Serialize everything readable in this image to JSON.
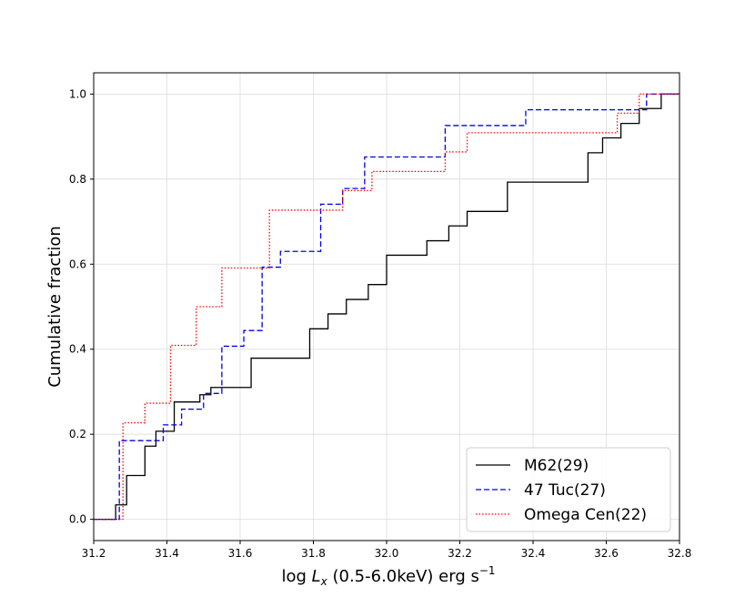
{
  "chart_data": {
    "type": "line",
    "subtype": "step-cdf",
    "title": "",
    "xlabel": {
      "prefix": "log ",
      "var": "L",
      "sub": "x",
      "suffix": " (0.5-6.0keV) erg s",
      "sup": "−1"
    },
    "ylabel": "Cumulative fraction",
    "xlim": [
      31.2,
      32.8
    ],
    "ylim": [
      -0.05,
      1.05
    ],
    "xticks": [
      "31.2",
      "31.4",
      "31.6",
      "31.8",
      "32.0",
      "32.2",
      "32.4",
      "32.6",
      "32.8"
    ],
    "yticks": [
      "0.0",
      "0.2",
      "0.4",
      "0.6",
      "0.8",
      "1.0"
    ],
    "grid": true,
    "legend_position": "bottom-right",
    "series": [
      {
        "name": "M62(29)",
        "color": "#000000",
        "dash": "solid",
        "x": [
          31.2,
          31.26,
          31.29,
          31.34,
          31.37,
          31.42,
          31.47,
          31.49,
          31.52,
          31.55,
          31.63,
          31.79,
          31.84,
          31.89,
          31.95,
          32.0,
          32.11,
          32.17,
          32.22,
          32.33,
          32.55,
          32.59,
          32.64,
          32.69,
          32.73,
          32.75,
          32.8
        ],
        "y": [
          0.0,
          0.034,
          0.103,
          0.172,
          0.207,
          0.276,
          0.276,
          0.293,
          0.31,
          0.31,
          0.379,
          0.448,
          0.483,
          0.517,
          0.552,
          0.621,
          0.655,
          0.69,
          0.724,
          0.793,
          0.862,
          0.897,
          0.931,
          0.966,
          0.966,
          1.0,
          1.0
        ]
      },
      {
        "name": "47 Tuc(27)",
        "color": "#0000ee",
        "dash": "dashed",
        "x": [
          31.2,
          31.27,
          31.39,
          31.44,
          31.5,
          31.55,
          31.61,
          31.66,
          31.71,
          31.82,
          31.88,
          31.94,
          32.16,
          32.38,
          32.71,
          32.8
        ],
        "y": [
          0.0,
          0.185,
          0.222,
          0.259,
          0.296,
          0.407,
          0.444,
          0.593,
          0.63,
          0.741,
          0.778,
          0.852,
          0.926,
          0.963,
          1.0,
          1.0
        ]
      },
      {
        "name": "Omega Cen(22)",
        "color": "#ff0000",
        "dash": "dotted",
        "x": [
          31.2,
          31.28,
          31.34,
          31.41,
          31.48,
          31.55,
          31.68,
          31.88,
          31.96,
          32.16,
          32.22,
          32.63,
          32.69,
          32.8
        ],
        "y": [
          0.0,
          0.227,
          0.273,
          0.409,
          0.5,
          0.591,
          0.727,
          0.773,
          0.818,
          0.864,
          0.909,
          0.955,
          1.0,
          1.0
        ]
      }
    ]
  }
}
